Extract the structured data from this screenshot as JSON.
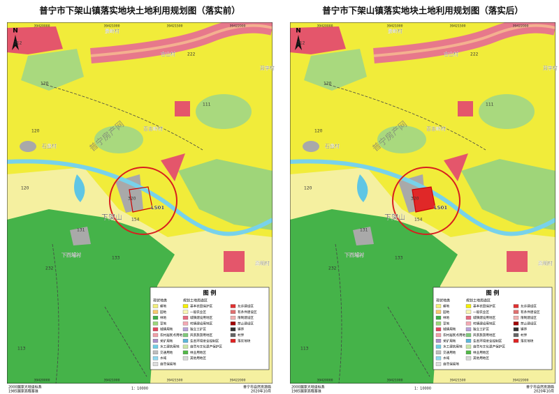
{
  "maps": [
    {
      "title": "普宁市下架山镇落实地块土地利用规划图（落实前）",
      "places": [
        "景岭村",
        "古山村",
        "双李村",
        "百吉岭村",
        "石盘村",
        "下架山",
        "下西埔村",
        "高明村",
        "LS01"
      ],
      "codes": [
        "212",
        "222",
        "120",
        "111",
        "120",
        "120",
        "320",
        "154",
        "131",
        "133",
        "232",
        "113"
      ]
    },
    {
      "title": "普宁市下架山镇落实地块土地利用规划图（落实后）",
      "places": [
        "景岭村",
        "古山村",
        "双李村",
        "百吉岭村",
        "石盘村",
        "下架山",
        "下西埔村",
        "高明村",
        "LS01"
      ],
      "codes": [
        "212",
        "222",
        "120",
        "111",
        "120",
        "120",
        "320",
        "154",
        "131",
        "133",
        "232",
        "113"
      ]
    }
  ],
  "coords": [
    "39420000",
    "39421000",
    "39421500",
    "39422000"
  ],
  "north": "N",
  "watermark": "普宁房产网",
  "legend": {
    "title": "图 例",
    "current_heading": "现状地类",
    "current": [
      "耕地",
      "园地",
      "林地",
      "草地",
      "城镇用地",
      "农村居民点用地",
      "采矿用地",
      "水工建筑用地",
      "交通用地",
      "水域",
      "自然保留地"
    ],
    "planned_heading": "规划土地用途区",
    "planned": [
      "基本农田保护区",
      "一般农业区",
      "城镇建设用地区",
      "村镇建设用地区",
      "独立工矿区",
      "风景旅游用地区",
      "生态环境安全控制区",
      "自然与文化遗产保护区",
      "林业用地区",
      "其他用地区"
    ],
    "other": [
      "允许建设区",
      "有条件建设区",
      "限制建设区",
      "禁止建设区",
      "镇界",
      "村界",
      "落实地块"
    ]
  },
  "footer": {
    "crs": "2000国家大地坐标系",
    "datum": "1985国家高程基准",
    "scale": "1：10000",
    "org": "普宁市自然资源局",
    "date": "2020年10月"
  }
}
